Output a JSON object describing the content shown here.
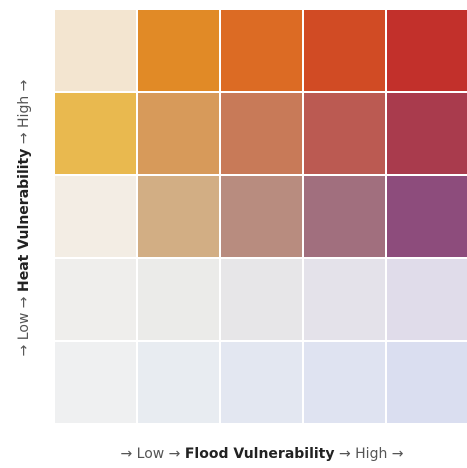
{
  "x_axis": {
    "prefix": "→ Low →",
    "title": "Flood Vulnerability",
    "suffix": "→ High →"
  },
  "y_axis": {
    "prefix": "→ Low →",
    "title": "Heat Vulnerability",
    "suffix": "→ High →"
  },
  "grid_colors": [
    [
      "#f3e5d0",
      "#e18a26",
      "#dc6b24",
      "#d14b24",
      "#c2302b"
    ],
    [
      "#e9b94f",
      "#d79a5a",
      "#c87a58",
      "#bb5a52",
      "#a93b4d"
    ],
    [
      "#f3ede4",
      "#d2ae84",
      "#b88c7f",
      "#a16f7e",
      "#8d4c7c"
    ],
    [
      "#efeeec",
      "#ebebe9",
      "#e7e6e8",
      "#e4e2ea",
      "#e0dcea"
    ],
    [
      "#eff0f1",
      "#e8ecf1",
      "#e3e7f1",
      "#dfe3f1",
      "#dadef0"
    ]
  ]
}
